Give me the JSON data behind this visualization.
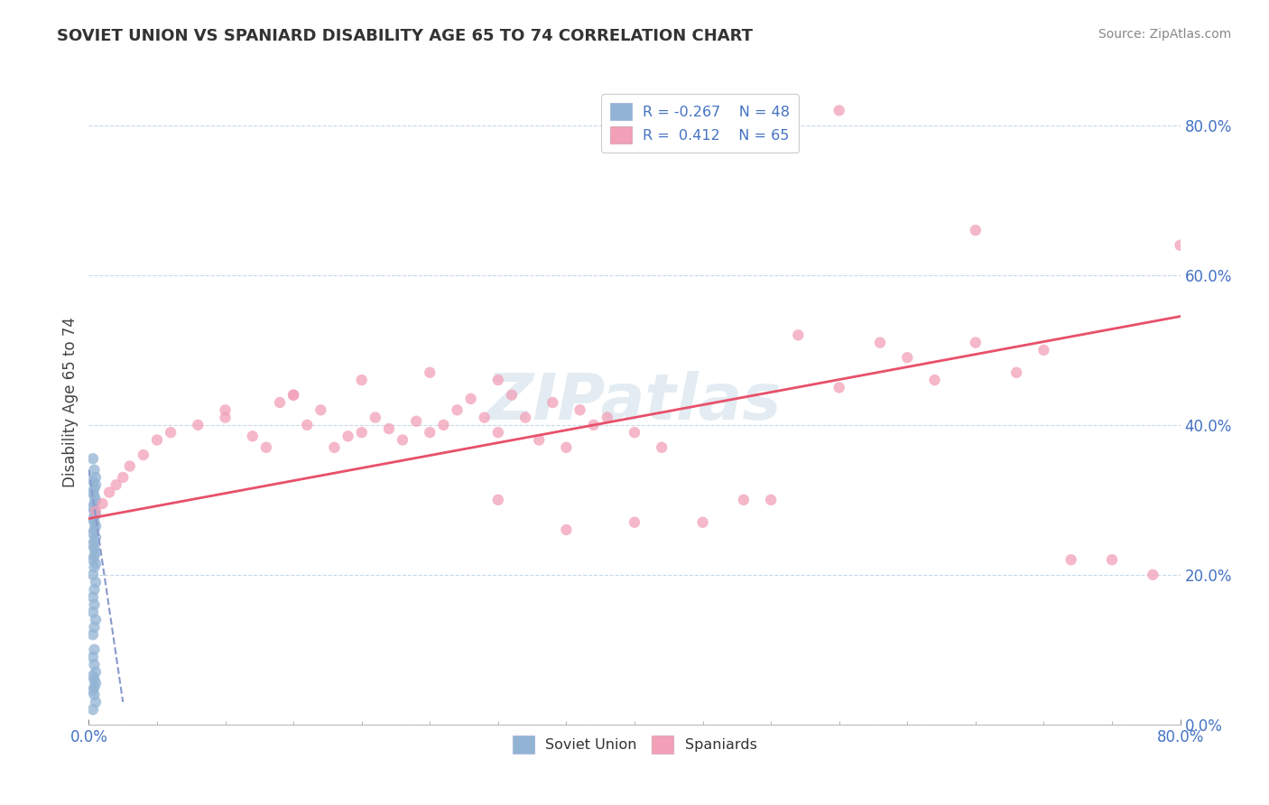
{
  "title": "SOVIET UNION VS SPANIARD DISABILITY AGE 65 TO 74 CORRELATION CHART",
  "source": "Source: ZipAtlas.com",
  "ylabel_label": "Disability Age 65 to 74",
  "xmin": 0.0,
  "xmax": 0.8,
  "ymin": 0.0,
  "ymax": 0.86,
  "soviet_R": -0.267,
  "soviet_N": 48,
  "spaniard_R": 0.412,
  "spaniard_N": 65,
  "soviet_color": "#92b4d4",
  "spaniard_color": "#f2a0b8",
  "soviet_line_color": "#8899cc",
  "spaniard_line_color": "#e8506a",
  "watermark": "ZIPatlas",
  "ytick_values": [
    0.0,
    0.2,
    0.4,
    0.6,
    0.8
  ],
  "ytick_labels": [
    "0.0%",
    "20.0%",
    "40.0%",
    "60.0%",
    "80.0%"
  ],
  "xtick_values": [
    0.0,
    0.8
  ],
  "xtick_labels": [
    "0.0%",
    "80.0%"
  ],
  "soviet_x": [
    0.003,
    0.004,
    0.005,
    0.003,
    0.005,
    0.004,
    0.003,
    0.004,
    0.005,
    0.004,
    0.003,
    0.004,
    0.005,
    0.003,
    0.004,
    0.005,
    0.004,
    0.003,
    0.005,
    0.004,
    0.003,
    0.004,
    0.005,
    0.004,
    0.003,
    0.005,
    0.004,
    0.003,
    0.005,
    0.004,
    0.003,
    0.004,
    0.003,
    0.005,
    0.004,
    0.003,
    0.004,
    0.003,
    0.004,
    0.005,
    0.003,
    0.004,
    0.005,
    0.004,
    0.003,
    0.004,
    0.005,
    0.003
  ],
  "soviet_y": [
    0.355,
    0.34,
    0.33,
    0.325,
    0.32,
    0.315,
    0.31,
    0.305,
    0.3,
    0.295,
    0.29,
    0.285,
    0.28,
    0.275,
    0.27,
    0.265,
    0.26,
    0.255,
    0.25,
    0.245,
    0.24,
    0.235,
    0.23,
    0.225,
    0.22,
    0.215,
    0.21,
    0.2,
    0.19,
    0.18,
    0.17,
    0.16,
    0.15,
    0.14,
    0.13,
    0.12,
    0.1,
    0.09,
    0.08,
    0.07,
    0.065,
    0.06,
    0.055,
    0.05,
    0.045,
    0.04,
    0.03,
    0.02
  ],
  "spaniard_x": [
    0.005,
    0.01,
    0.015,
    0.02,
    0.025,
    0.03,
    0.04,
    0.05,
    0.06,
    0.08,
    0.1,
    0.12,
    0.13,
    0.14,
    0.15,
    0.16,
    0.17,
    0.18,
    0.19,
    0.2,
    0.21,
    0.22,
    0.23,
    0.24,
    0.25,
    0.26,
    0.27,
    0.28,
    0.29,
    0.3,
    0.3,
    0.31,
    0.32,
    0.33,
    0.34,
    0.35,
    0.36,
    0.37,
    0.38,
    0.4,
    0.42,
    0.45,
    0.48,
    0.5,
    0.52,
    0.55,
    0.58,
    0.6,
    0.62,
    0.65,
    0.68,
    0.7,
    0.72,
    0.75,
    0.78,
    0.8,
    0.25,
    0.3,
    0.35,
    0.4,
    0.2,
    0.15,
    0.1,
    0.55,
    0.65
  ],
  "spaniard_y": [
    0.285,
    0.295,
    0.31,
    0.32,
    0.33,
    0.345,
    0.36,
    0.38,
    0.39,
    0.4,
    0.41,
    0.385,
    0.37,
    0.43,
    0.44,
    0.4,
    0.42,
    0.37,
    0.385,
    0.39,
    0.41,
    0.395,
    0.38,
    0.405,
    0.39,
    0.4,
    0.42,
    0.435,
    0.41,
    0.39,
    0.46,
    0.44,
    0.41,
    0.38,
    0.43,
    0.37,
    0.42,
    0.4,
    0.41,
    0.39,
    0.37,
    0.27,
    0.3,
    0.3,
    0.52,
    0.45,
    0.51,
    0.49,
    0.46,
    0.51,
    0.47,
    0.5,
    0.22,
    0.22,
    0.2,
    0.64,
    0.47,
    0.3,
    0.26,
    0.27,
    0.46,
    0.44,
    0.42,
    0.82,
    0.66
  ],
  "spaniard_trend_x0": 0.0,
  "spaniard_trend_y0": 0.275,
  "spaniard_trend_x1": 0.8,
  "spaniard_trend_y1": 0.545,
  "soviet_trend_x0": 0.0,
  "soviet_trend_y0": 0.34,
  "soviet_trend_x1": 0.025,
  "soviet_trend_y1": 0.03
}
